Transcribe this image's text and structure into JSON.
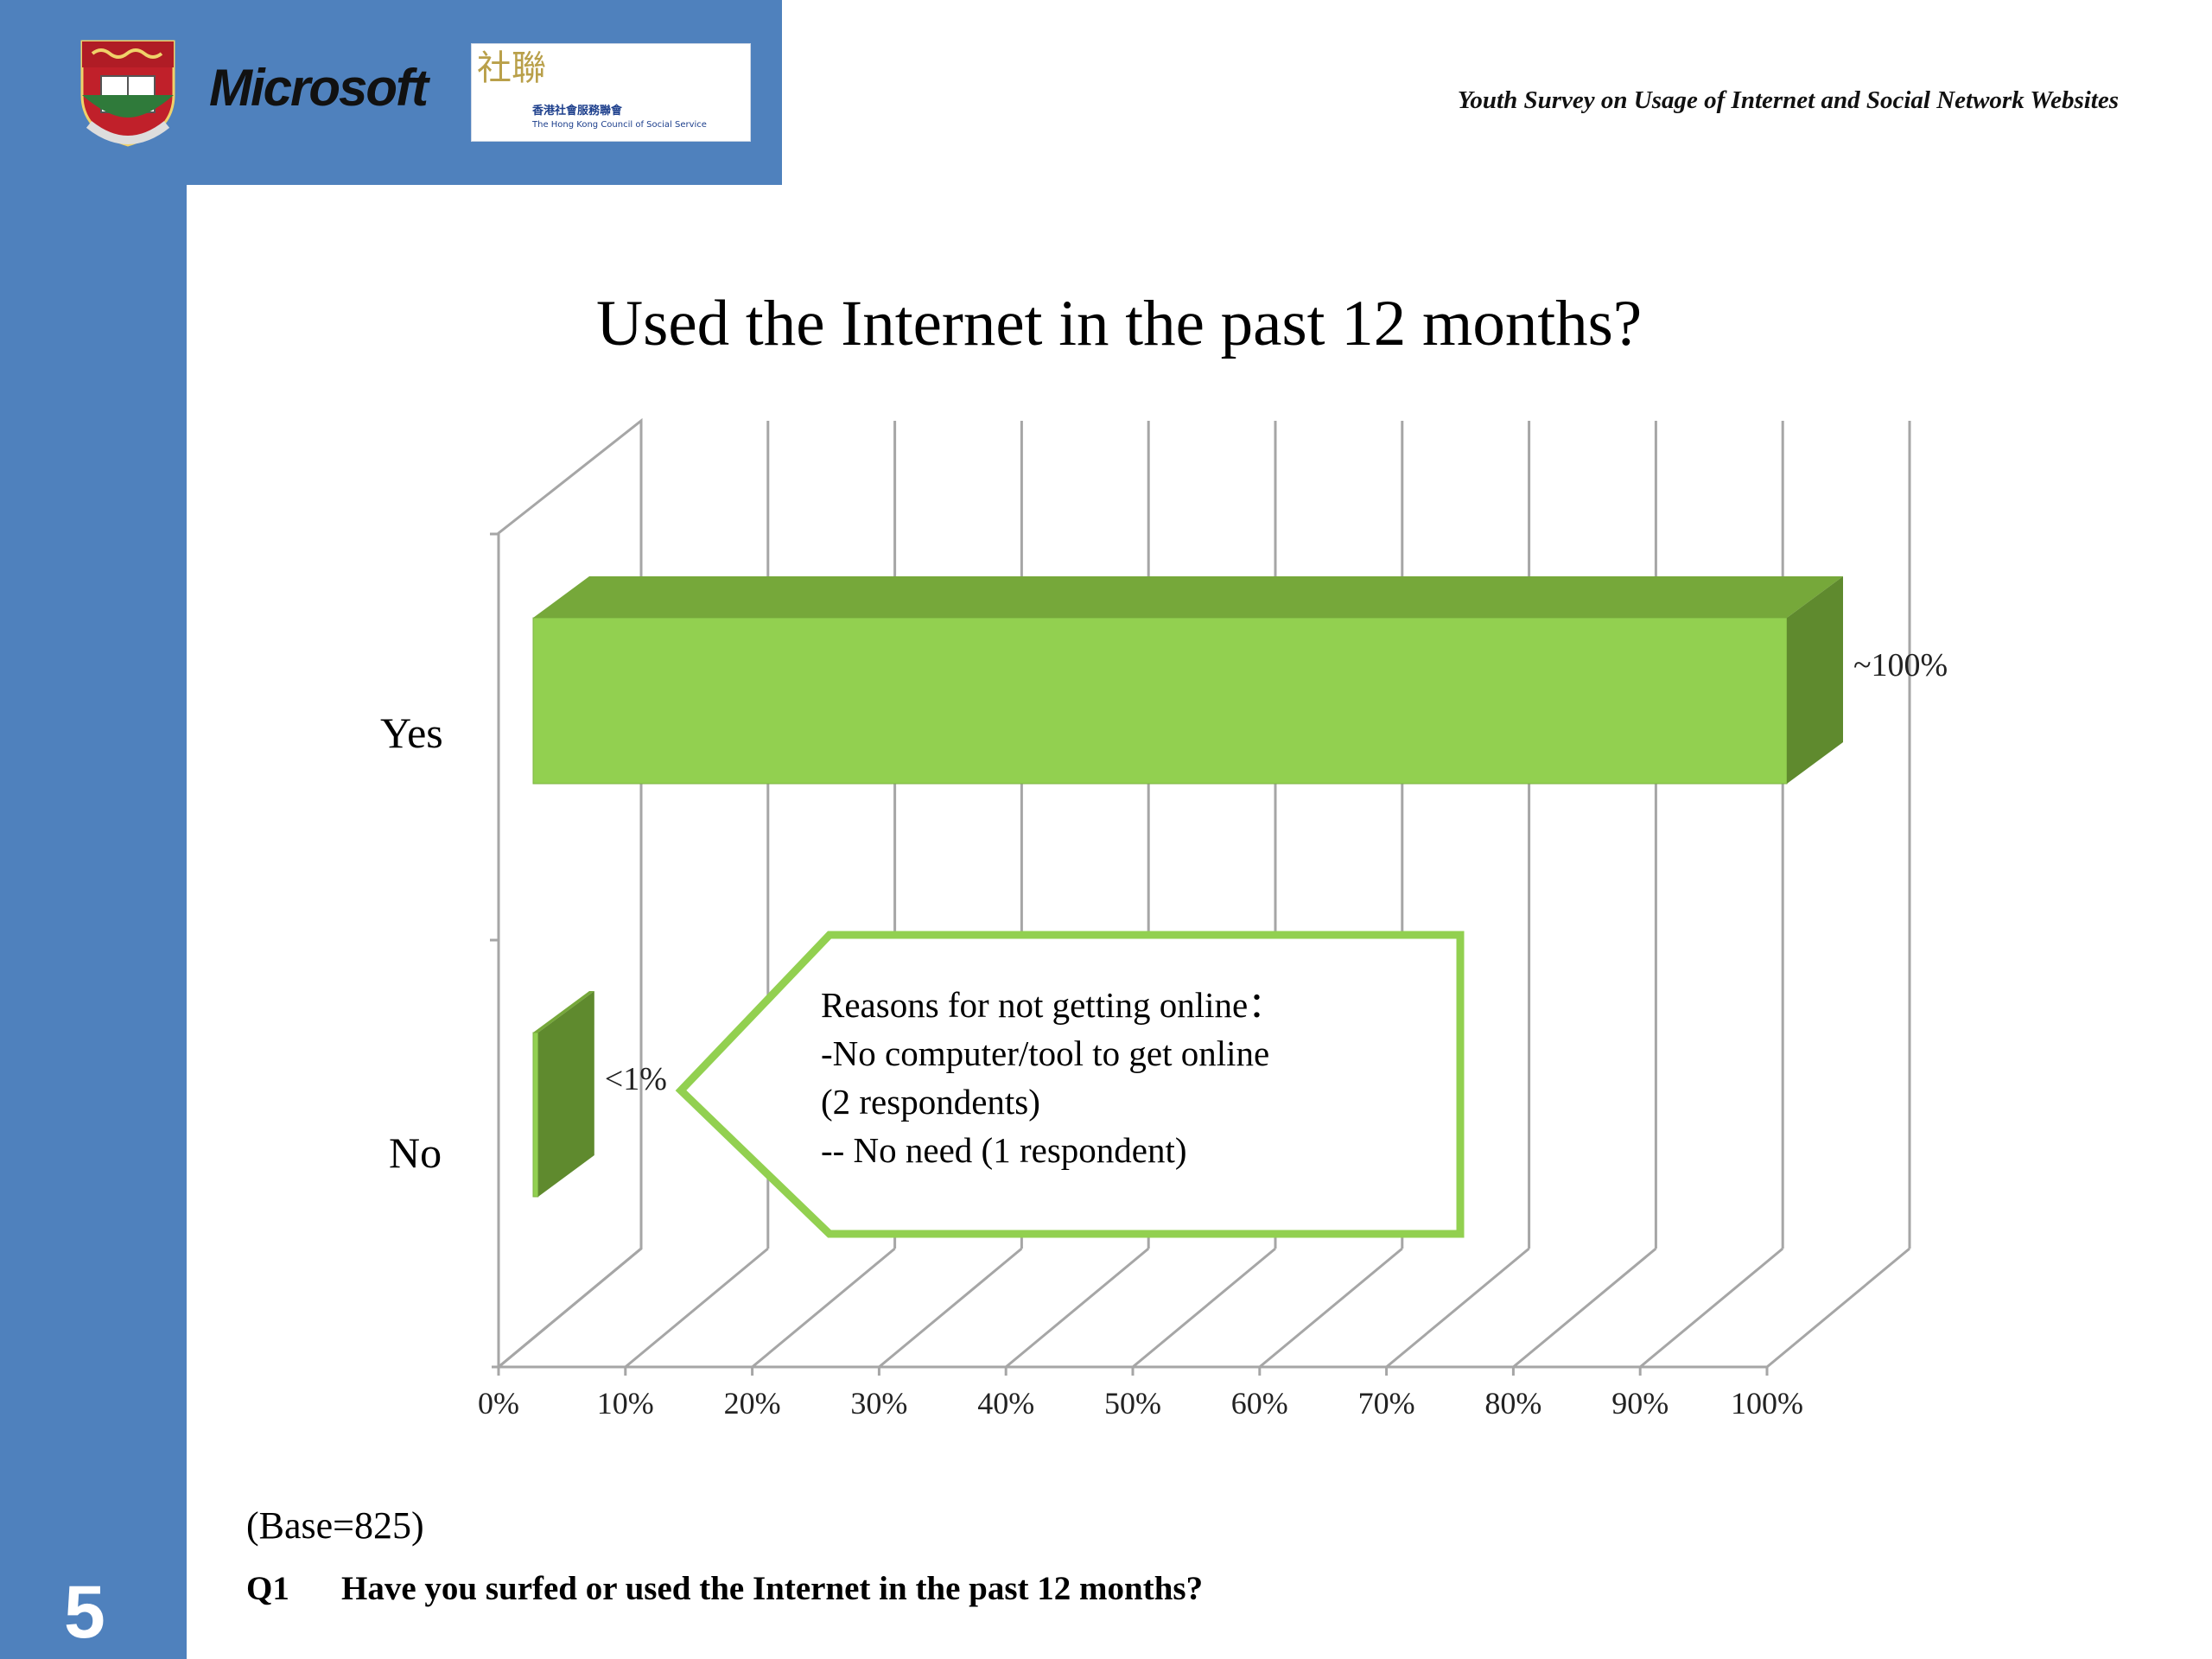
{
  "header": {
    "survey_title": "Youth Survey on Usage of Internet and Social Network Websites",
    "microsoft_label": "Microsoft",
    "hkcss_name_zh": "香港社會服務聯會",
    "hkcss_name_en": "The Hong Kong Council of Social Service",
    "hkcss_mark": "社聯"
  },
  "slide": {
    "number": "5"
  },
  "colors": {
    "sidebar": "#4f81bd",
    "bar_front": "#92d050",
    "bar_top": "#76a83a",
    "bar_side": "#5f8a2e",
    "callout_border": "#92d050",
    "grid": "#a6a6a6"
  },
  "chart_data": {
    "type": "bar",
    "orientation": "horizontal",
    "style": "3d",
    "title": "Used the Internet in the past 12 months?",
    "categories": [
      "Yes",
      "No"
    ],
    "values": [
      100,
      0.4
    ],
    "value_labels": [
      "~100%",
      "<1%"
    ],
    "xlim": [
      0,
      100
    ],
    "x_ticks": [
      "0%",
      "10%",
      "20%",
      "30%",
      "40%",
      "50%",
      "60%",
      "70%",
      "80%",
      "90%",
      "100%"
    ],
    "grid": true,
    "legend": "none",
    "annotation": {
      "lines": [
        "Reasons for not getting online：",
        "-No computer/tool to get online",
        "(2 respondents)",
        "-- No need (1 respondent)"
      ]
    }
  },
  "footer": {
    "base": "(Base=825)",
    "question_id": "Q1",
    "question_text": "Have you surfed or used the Internet in the past 12 months?"
  }
}
